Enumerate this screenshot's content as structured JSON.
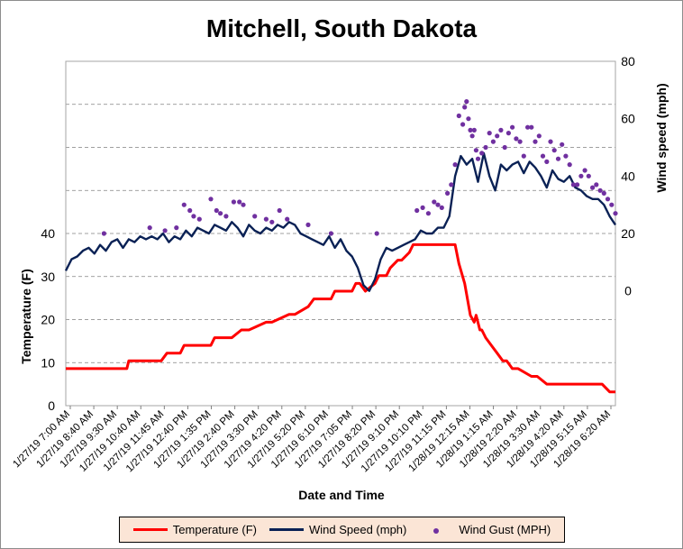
{
  "colors": {
    "temperature": "#ff0000",
    "wind_speed": "#0a2155",
    "wind_gust": "#7030a0",
    "legend_bg": "#fbe5d6",
    "grid": "#808080"
  },
  "legend": [
    {
      "label": "Temperature (F)",
      "type": "line",
      "color": "#ff0000"
    },
    {
      "label": "Wind Speed (mph)",
      "type": "line",
      "color": "#0a2155"
    },
    {
      "label": "Wind Gust (MPH)",
      "type": "dot",
      "color": "#7030a0"
    }
  ],
  "chart_data": {
    "type": "line",
    "title": "Mitchell, South Dakota",
    "xlabel": "Date and Time",
    "ylabel": "Temperature (F)",
    "y2label": "Wind speed (mph)",
    "ylim": [
      0,
      80
    ],
    "y2lim": [
      -40,
      80
    ],
    "yticks": [
      0,
      10,
      20,
      30,
      40
    ],
    "y2ticks": [
      0,
      20,
      40,
      60,
      80
    ],
    "grid": true,
    "legend_position": "bottom",
    "x_start": "1/27/19 7:00 AM",
    "x_end": "1/28/19 7:00 AM",
    "x_tick_labels": [
      "1/27/19 7:00 AM",
      "1/27/19 8:40 AM",
      "1/27/19 9:30 AM",
      "1/27/19 10:40 AM",
      "1/27/19 11:45 AM",
      "1/27/19 12:40 PM",
      "1/27/19 1:35 PM",
      "1/27/19 2:40 PM",
      "1/27/19 3:30 PM",
      "1/27/19 4:20 PM",
      "1/27/19 5:20 PM",
      "1/27/19 6:10 PM",
      "1/27/19 7:05 PM",
      "1/27/19 8:20 PM",
      "1/27/19 9:10 PM",
      "1/27/19 10:10 PM",
      "1/27/19 11:15 PM",
      "1/28/19 12:15 AM",
      "1/28/19 1:15 AM",
      "1/28/19 2:20 AM",
      "1/28/19 3:30 AM",
      "1/28/19 4:20 AM",
      "1/28/19 5:15 AM",
      "1/28/19 6:20 AM"
    ],
    "series": [
      {
        "name": "Temperature (F)",
        "axis": "left",
        "x": [
          "1/27/19 7:00 AM",
          "1/27/19 9:40 AM",
          "1/27/19 9:45 AM",
          "1/27/19 10:15 AM",
          "1/27/19 10:30 AM",
          "1/27/19 11:10 AM",
          "1/27/19 11:25 AM",
          "1/27/19 11:45 AM",
          "1/27/19 12:00 PM",
          "1/27/19 12:10 PM",
          "1/27/19 1:20 PM",
          "1/27/19 1:30 PM",
          "1/27/19 2:00 PM",
          "1/27/19 2:15 PM",
          "1/27/19 2:40 PM",
          "1/27/19 3:00 PM",
          "1/27/19 3:45 PM",
          "1/27/19 4:00 PM",
          "1/27/19 4:45 PM",
          "1/27/19 5:00 PM",
          "1/27/19 5:35 PM",
          "1/27/19 5:50 PM",
          "1/27/19 6:35 PM",
          "1/27/19 6:45 PM",
          "1/27/19 7:30 PM",
          "1/27/19 7:40 PM",
          "1/27/19 7:50 PM",
          "1/27/19 8:05 PM",
          "1/27/19 8:30 PM",
          "1/27/19 8:40 PM",
          "1/27/19 9:00 PM",
          "1/27/19 9:10 PM",
          "1/27/19 9:30 PM",
          "1/27/19 9:40 PM",
          "1/27/19 10:00 PM",
          "1/27/19 10:10 PM",
          "1/27/19 11:55 PM",
          "1/28/19 12:00 AM",
          "1/28/19 12:10 AM",
          "1/28/19 12:25 AM",
          "1/28/19 12:40 AM",
          "1/28/19 12:50 AM",
          "1/28/19 12:55 AM",
          "1/28/19 1:05 AM",
          "1/28/19 1:10 AM",
          "1/28/19 1:20 AM",
          "1/28/19 1:35 AM",
          "1/28/19 1:50 AM",
          "1/28/19 2:05 AM",
          "1/28/19 2:15 AM",
          "1/28/19 2:30 AM",
          "1/28/19 2:45 AM",
          "1/28/19 3:20 AM",
          "1/28/19 3:35 AM",
          "1/28/19 4:00 AM",
          "1/28/19 4:15 AM",
          "1/28/19 6:15 AM",
          "1/28/19 6:25 AM",
          "1/28/19 6:45 AM",
          "1/28/19 6:55 AM",
          "1/28/19 7:00 AM"
        ],
        "values": [
          8.6,
          8.6,
          10.4,
          10.4,
          10.4,
          10.4,
          12.2,
          12.2,
          12.2,
          14,
          14,
          15.8,
          15.8,
          15.8,
          17.6,
          17.6,
          19.4,
          19.4,
          21.2,
          21.2,
          23,
          24.8,
          24.8,
          26.6,
          26.6,
          28.4,
          28.4,
          26.6,
          28.4,
          30.2,
          30.2,
          32,
          33.8,
          33.8,
          35.6,
          37.4,
          37.4,
          37.4,
          33,
          28.4,
          21,
          19.4,
          21,
          17.6,
          17.6,
          15.8,
          14,
          12.2,
          10.4,
          10.4,
          8.6,
          8.6,
          6.8,
          6.8,
          5,
          5,
          5,
          5,
          3.2,
          3.2,
          3.2
        ]
      },
      {
        "name": "Wind Speed (mph)",
        "axis": "right",
        "x": [
          "1/27/19 7:00 AM",
          "1/27/19 7:15 AM",
          "1/27/19 7:30 AM",
          "1/27/19 7:45 AM",
          "1/27/19 8:00 AM",
          "1/27/19 8:15 AM",
          "1/27/19 8:30 AM",
          "1/27/19 8:45 AM",
          "1/27/19 9:00 AM",
          "1/27/19 9:15 AM",
          "1/27/19 9:30 AM",
          "1/27/19 9:45 AM",
          "1/27/19 10:00 AM",
          "1/27/19 10:15 AM",
          "1/27/19 10:30 AM",
          "1/27/19 10:45 AM",
          "1/27/19 11:00 AM",
          "1/27/19 11:15 AM",
          "1/27/19 11:30 AM",
          "1/27/19 11:45 AM",
          "1/27/19 12:00 PM",
          "1/27/19 12:15 PM",
          "1/27/19 12:30 PM",
          "1/27/19 12:45 PM",
          "1/27/19 1:00 PM",
          "1/27/19 1:15 PM",
          "1/27/19 1:30 PM",
          "1/27/19 1:45 PM",
          "1/27/19 2:00 PM",
          "1/27/19 2:15 PM",
          "1/27/19 2:30 PM",
          "1/27/19 2:45 PM",
          "1/27/19 3:00 PM",
          "1/27/19 3:15 PM",
          "1/27/19 3:30 PM",
          "1/27/19 3:45 PM",
          "1/27/19 4:00 PM",
          "1/27/19 4:15 PM",
          "1/27/19 4:30 PM",
          "1/27/19 4:45 PM",
          "1/27/19 5:00 PM",
          "1/27/19 5:15 PM",
          "1/27/19 5:30 PM",
          "1/27/19 5:45 PM",
          "1/27/19 6:00 PM",
          "1/27/19 6:15 PM",
          "1/27/19 6:30 PM",
          "1/27/19 6:45 PM",
          "1/27/19 7:00 PM",
          "1/27/19 7:15 PM",
          "1/27/19 7:30 PM",
          "1/27/19 7:45 PM",
          "1/27/19 8:00 PM",
          "1/27/19 8:15 PM",
          "1/27/19 8:30 PM",
          "1/27/19 8:45 PM",
          "1/27/19 9:00 PM",
          "1/27/19 9:15 PM",
          "1/27/19 9:30 PM",
          "1/27/19 9:45 PM",
          "1/27/19 10:00 PM",
          "1/27/19 10:15 PM",
          "1/27/19 10:30 PM",
          "1/27/19 10:45 PM",
          "1/27/19 11:00 PM",
          "1/27/19 11:15 PM",
          "1/27/19 11:30 PM",
          "1/27/19 11:45 PM",
          "1/28/19 12:00 AM",
          "1/28/19 12:15 AM",
          "1/28/19 12:30 AM",
          "1/28/19 12:45 AM",
          "1/28/19 1:00 AM",
          "1/28/19 1:15 AM",
          "1/28/19 1:30 AM",
          "1/28/19 1:45 AM",
          "1/28/19 2:00 AM",
          "1/28/19 2:15 AM",
          "1/28/19 2:30 AM",
          "1/28/19 2:45 AM",
          "1/28/19 3:00 AM",
          "1/28/19 3:15 AM",
          "1/28/19 3:30 AM",
          "1/28/19 3:45 AM",
          "1/28/19 4:00 AM",
          "1/28/19 4:15 AM",
          "1/28/19 4:30 AM",
          "1/28/19 4:45 AM",
          "1/28/19 5:00 AM",
          "1/28/19 5:15 AM",
          "1/28/19 5:30 AM",
          "1/28/19 5:45 AM",
          "1/28/19 6:00 AM",
          "1/28/19 6:15 AM",
          "1/28/19 6:30 AM",
          "1/28/19 6:45 AM",
          "1/28/19 7:00 AM"
        ],
        "values": [
          7,
          11,
          12,
          14,
          15,
          13,
          16,
          14,
          17,
          18,
          15,
          18,
          17,
          19,
          18,
          19,
          18,
          20,
          17,
          19,
          18,
          21,
          19,
          22,
          21,
          20,
          23,
          22,
          21,
          24,
          22,
          19,
          23,
          21,
          20,
          22,
          21,
          23,
          22,
          24,
          23,
          20,
          19,
          18,
          17,
          16,
          19,
          15,
          18,
          14,
          12,
          8,
          2,
          0,
          4,
          11,
          15,
          14,
          15,
          16,
          17,
          18,
          21,
          20,
          20,
          22,
          22,
          26,
          40,
          47,
          44,
          46,
          38,
          48,
          40,
          35,
          44,
          42,
          44,
          45,
          41,
          45,
          43,
          40,
          36,
          42,
          39,
          38,
          40,
          36,
          35,
          33,
          32,
          32,
          30,
          26,
          23
        ]
      },
      {
        "name": "Wind Gust (MPH)",
        "axis": "right",
        "type": "scatter",
        "x": [
          "1/27/19 8:40 AM",
          "1/27/19 10:40 AM",
          "1/27/19 11:20 AM",
          "1/27/19 11:50 AM",
          "1/27/19 12:10 PM",
          "1/27/19 12:25 PM",
          "1/27/19 12:35 PM",
          "1/27/19 12:50 PM",
          "1/27/19 1:20 PM",
          "1/27/19 1:35 PM",
          "1/27/19 1:45 PM",
          "1/27/19 2:00 PM",
          "1/27/19 2:20 PM",
          "1/27/19 2:35 PM",
          "1/27/19 2:45 PM",
          "1/27/19 3:15 PM",
          "1/27/19 3:45 PM",
          "1/27/19 4:00 PM",
          "1/27/19 4:20 PM",
          "1/27/19 4:40 PM",
          "1/27/19 5:35 PM",
          "1/27/19 6:35 PM",
          "1/27/19 8:35 PM",
          "1/27/19 10:20 PM",
          "1/27/19 10:35 PM",
          "1/27/19 10:50 PM",
          "1/27/19 11:05 PM",
          "1/27/19 11:15 PM",
          "1/27/19 11:25 PM",
          "1/27/19 11:40 PM",
          "1/27/19 11:50 PM",
          "1/28/19 12:00 AM",
          "1/28/19 12:10 AM",
          "1/28/19 12:20 AM",
          "1/28/19 12:25 AM",
          "1/28/19 12:30 AM",
          "1/28/19 12:35 AM",
          "1/28/19 12:40 AM",
          "1/28/19 12:45 AM",
          "1/28/19 12:50 AM",
          "1/28/19 12:55 AM",
          "1/28/19 1:00 AM",
          "1/28/19 1:10 AM",
          "1/28/19 1:20 AM",
          "1/28/19 1:30 AM",
          "1/28/19 1:40 AM",
          "1/28/19 1:50 AM",
          "1/28/19 2:00 AM",
          "1/28/19 2:10 AM",
          "1/28/19 2:20 AM",
          "1/28/19 2:30 AM",
          "1/28/19 2:40 AM",
          "1/28/19 2:50 AM",
          "1/28/19 3:00 AM",
          "1/28/19 3:10 AM",
          "1/28/19 3:20 AM",
          "1/28/19 3:30 AM",
          "1/28/19 3:40 AM",
          "1/28/19 3:50 AM",
          "1/28/19 4:00 AM",
          "1/28/19 4:10 AM",
          "1/28/19 4:20 AM",
          "1/28/19 4:30 AM",
          "1/28/19 4:40 AM",
          "1/28/19 4:50 AM",
          "1/28/19 5:00 AM",
          "1/28/19 5:10 AM",
          "1/28/19 5:20 AM",
          "1/28/19 5:30 AM",
          "1/28/19 5:40 AM",
          "1/28/19 5:50 AM",
          "1/28/19 6:00 AM",
          "1/28/19 6:10 AM",
          "1/28/19 6:20 AM",
          "1/28/19 6:30 AM",
          "1/28/19 6:40 AM",
          "1/28/19 6:50 AM",
          "1/28/19 7:00 AM"
        ],
        "values": [
          20,
          22,
          21,
          22,
          30,
          28,
          26,
          25,
          32,
          28,
          27,
          26,
          31,
          31,
          30,
          26,
          25,
          24,
          28,
          25,
          23,
          20,
          20,
          28,
          29,
          27,
          31,
          30,
          29,
          34,
          37,
          44,
          61,
          58,
          64,
          66,
          60,
          56,
          54,
          56,
          49,
          46,
          48,
          50,
          55,
          52,
          54,
          56,
          50,
          55,
          57,
          53,
          52,
          47,
          57,
          57,
          52,
          54,
          47,
          45,
          52,
          49,
          46,
          51,
          47,
          44,
          37,
          37,
          40,
          42,
          40,
          36,
          37,
          35,
          34,
          32,
          30,
          27
        ]
      }
    ]
  }
}
